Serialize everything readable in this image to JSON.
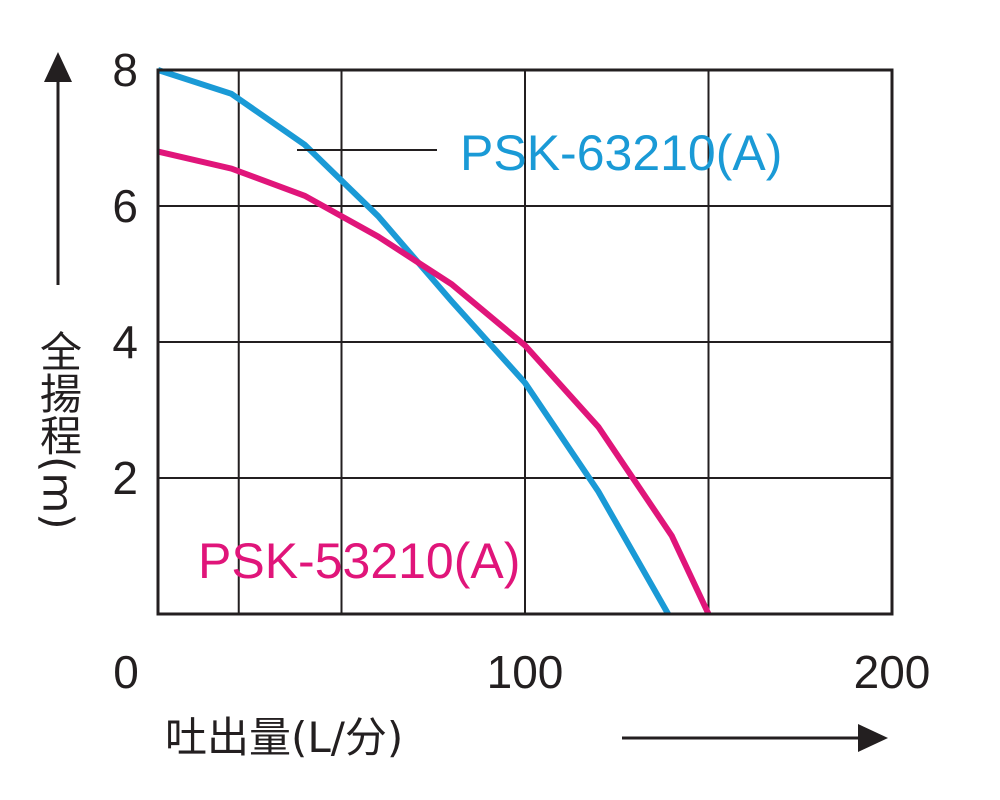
{
  "chart_data": {
    "type": "line",
    "x_label": "吐出量(L/分)",
    "y_label": "全揚程(m)",
    "xlim": [
      0,
      200
    ],
    "xticks": [
      0,
      100,
      200
    ],
    "x_grid_lines": [
      22,
      50,
      100,
      150
    ],
    "ylim": [
      0,
      8
    ],
    "yticks": [
      2,
      4,
      6,
      8
    ],
    "x_tick_zero": 0,
    "grid": true,
    "series": [
      {
        "name": "PSK-63210(A)",
        "color": "#1a9ad6",
        "x": [
          0,
          20,
          40,
          60,
          80,
          100,
          120,
          139
        ],
        "values": [
          8,
          7.65,
          6.9,
          5.85,
          4.6,
          3.4,
          1.8,
          0
        ]
      },
      {
        "name": "PSK-53210(A)",
        "color": "#e0157a",
        "x": [
          0,
          20,
          40,
          60,
          80,
          100,
          120,
          140,
          150
        ],
        "values": [
          6.8,
          6.55,
          6.15,
          5.55,
          4.85,
          3.95,
          2.75,
          1.15,
          0
        ]
      }
    ]
  }
}
